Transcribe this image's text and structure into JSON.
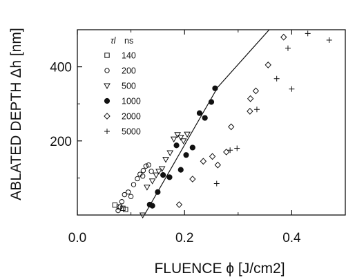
{
  "chart_data": {
    "type": "scatter",
    "title": "",
    "xlabel": "FLUENCE ϕ [J/cm2]",
    "ylabel": "ABLATED DEPTH Δh [nm]",
    "xlim": [
      0.0,
      0.5
    ],
    "ylim": [
      0,
      500
    ],
    "xticks": [
      "0.0",
      "0.2",
      "0.4"
    ],
    "yticks": [
      "200",
      "400"
    ],
    "legend": {
      "position": "top-left",
      "header_symbol": "τl",
      "header_unit": "ns"
    },
    "series": [
      {
        "name": "140",
        "marker": "square",
        "points": [
          [
            0.07,
            27
          ],
          [
            0.078,
            22
          ],
          [
            0.085,
            18
          ],
          [
            0.09,
            15
          ]
        ]
      },
      {
        "name": "200",
        "marker": "circle",
        "points": [
          [
            0.076,
            12
          ],
          [
            0.08,
            22
          ],
          [
            0.083,
            36
          ],
          [
            0.088,
            55
          ],
          [
            0.095,
            62
          ],
          [
            0.1,
            50
          ],
          [
            0.105,
            82
          ],
          [
            0.112,
            98
          ],
          [
            0.117,
            110
          ],
          [
            0.123,
            120
          ],
          [
            0.128,
            132
          ],
          [
            0.133,
            135
          ],
          [
            0.138,
            118
          ],
          [
            0.122,
            105
          ]
        ]
      },
      {
        "name": "500",
        "marker": "triangle-down",
        "points": [
          [
            0.122,
            0
          ],
          [
            0.13,
            75
          ],
          [
            0.14,
            92
          ],
          [
            0.147,
            108
          ],
          [
            0.152,
            118
          ],
          [
            0.158,
            125
          ],
          [
            0.165,
            150
          ],
          [
            0.173,
            168
          ],
          [
            0.18,
            205
          ],
          [
            0.187,
            217
          ],
          [
            0.193,
            210
          ],
          [
            0.198,
            200
          ],
          [
            0.205,
            218
          ]
        ]
      },
      {
        "name": "1000",
        "marker": "circle-filled",
        "points": [
          [
            0.135,
            28
          ],
          [
            0.14,
            25
          ],
          [
            0.15,
            62
          ],
          [
            0.16,
            108
          ],
          [
            0.172,
            102
          ],
          [
            0.185,
            188
          ],
          [
            0.193,
            122
          ],
          [
            0.203,
            162
          ],
          [
            0.215,
            182
          ],
          [
            0.228,
            275
          ],
          [
            0.238,
            262
          ],
          [
            0.25,
            305
          ],
          [
            0.257,
            342
          ]
        ]
      },
      {
        "name": "2000",
        "marker": "diamond",
        "points": [
          [
            0.19,
            28
          ],
          [
            0.215,
            97
          ],
          [
            0.235,
            145
          ],
          [
            0.252,
            158
          ],
          [
            0.262,
            135
          ],
          [
            0.278,
            170
          ],
          [
            0.287,
            238
          ],
          [
            0.322,
            280
          ],
          [
            0.323,
            314
          ],
          [
            0.333,
            335
          ],
          [
            0.356,
            405
          ],
          [
            0.385,
            480
          ]
        ]
      },
      {
        "name": "5000",
        "marker": "plus",
        "points": [
          [
            0.26,
            85
          ],
          [
            0.285,
            175
          ],
          [
            0.298,
            180
          ],
          [
            0.335,
            285
          ],
          [
            0.372,
            368
          ],
          [
            0.393,
            450
          ],
          [
            0.4,
            340
          ],
          [
            0.43,
            490
          ],
          [
            0.47,
            472
          ]
        ]
      }
    ],
    "fit_line": [
      [
        0.125,
        0
      ],
      [
        0.262,
        345
      ],
      [
        0.358,
        500
      ]
    ],
    "colors": {
      "ink": "#111111",
      "background": "#ffffff"
    }
  }
}
